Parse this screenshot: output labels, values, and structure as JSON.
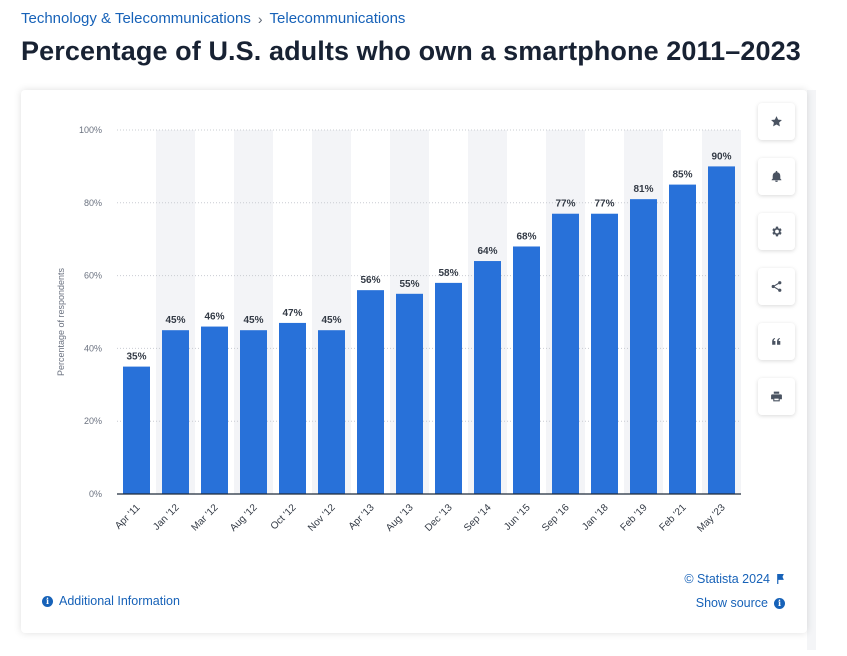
{
  "breadcrumb": {
    "items": [
      "Technology & Telecommunications",
      "Telecommunications"
    ],
    "separator": "›"
  },
  "page_title": "Percentage of U.S. adults who own a smartphone 2011–2023",
  "toolbar": {
    "icons": [
      "star-icon",
      "bell-icon",
      "gear-icon",
      "share-icon",
      "quote-icon",
      "print-icon"
    ]
  },
  "footer": {
    "additional_info": "Additional Information",
    "copyright": "© Statista 2024",
    "show_source": "Show source"
  },
  "colors": {
    "bar": "#2871d9",
    "link": "#1762b8",
    "stripe": "#f3f4f7"
  },
  "chart_data": {
    "type": "bar",
    "categories": [
      "Apr '11",
      "Jan '12",
      "Mar '12",
      "Aug '12",
      "Oct '12",
      "Nov '12",
      "Apr '13",
      "Aug '13",
      "Dec '13",
      "Sep '14",
      "Jun '15",
      "Sep '16",
      "Jan '18",
      "Feb '19",
      "Feb '21",
      "May '23"
    ],
    "values": [
      35,
      45,
      46,
      45,
      47,
      45,
      56,
      55,
      58,
      64,
      68,
      77,
      77,
      81,
      85,
      90
    ],
    "value_labels": [
      "35%",
      "45%",
      "46%",
      "45%",
      "47%",
      "45%",
      "56%",
      "55%",
      "58%",
      "64%",
      "68%",
      "77%",
      "77%",
      "81%",
      "85%",
      "90%"
    ],
    "ylabel": "Percentage of respondents",
    "ylim": [
      0,
      100
    ],
    "yticks": [
      0,
      20,
      40,
      60,
      80,
      100
    ],
    "ytick_labels": [
      "0%",
      "20%",
      "40%",
      "60%",
      "80%",
      "100%"
    ],
    "grid": true
  }
}
